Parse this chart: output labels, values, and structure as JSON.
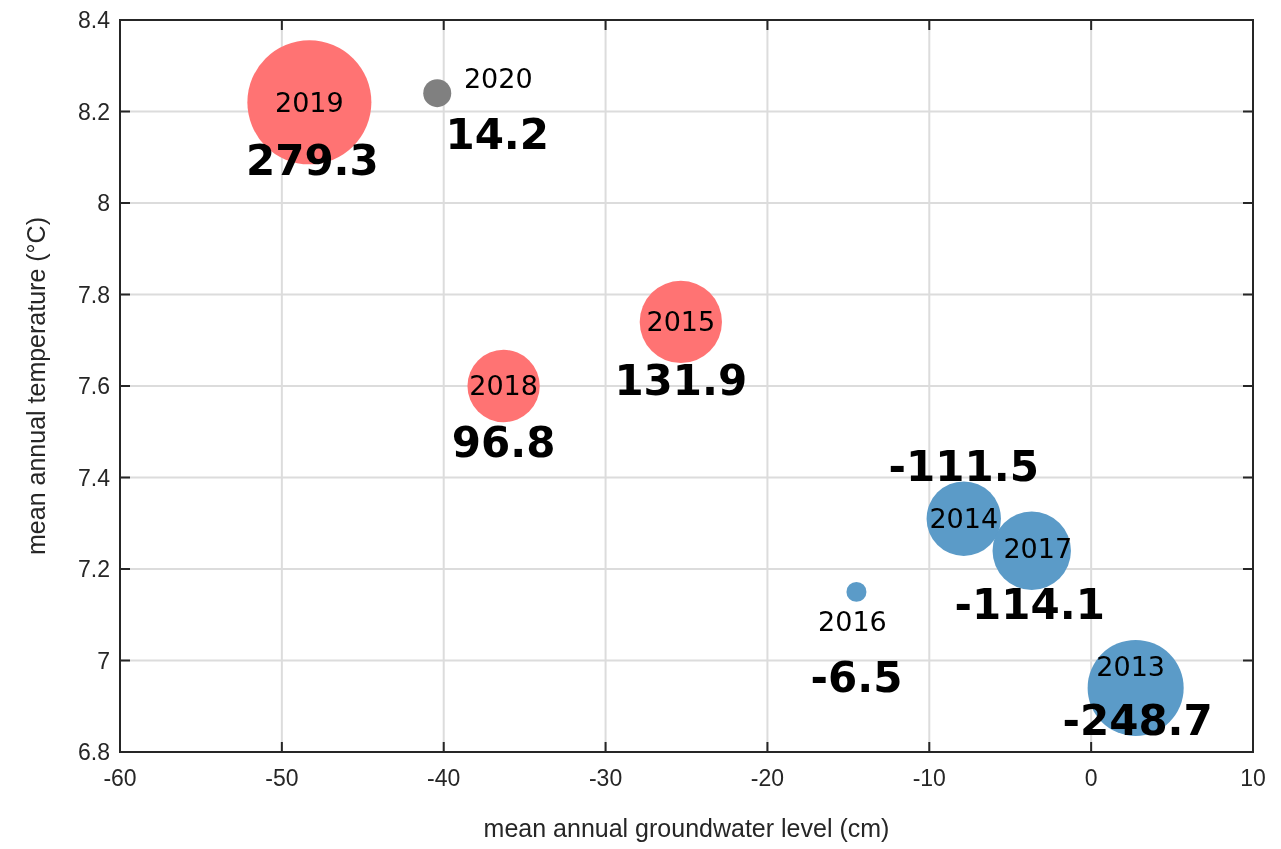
{
  "chart_data": {
    "type": "bubble",
    "xlabel": "mean annual groundwater level (cm)",
    "ylabel": "mean annual temperature (°C)",
    "x": [
      2.75,
      -7.87,
      -25.35,
      -14.5,
      -3.67,
      -36.3,
      -48.3,
      -40.4
    ],
    "values": [
      6.94,
      7.31,
      7.74,
      7.15,
      7.24,
      7.6,
      8.22,
      8.24
    ],
    "sizes": [
      0.6,
      0.36,
      0.44,
      0.026,
      0.4,
      0.34,
      1,
      0.051
    ],
    "colors": [
      "#5b9bc8",
      "#5b9bc8",
      "#ff7373",
      "#5b9bc8",
      "#5b9bc8",
      "#ff7373",
      "#ff7373",
      "#808080"
    ],
    "xlim": [
      -60,
      10
    ],
    "xticks": [
      -60,
      -50,
      -40,
      -30,
      -20,
      -10,
      0,
      10
    ],
    "ylim": [
      6.8,
      8.4
    ],
    "yticks": [
      6.8,
      7,
      7.2,
      7.4,
      7.6,
      7.8,
      8,
      8.2,
      8.4
    ],
    "grid": true,
    "annotations": [
      {
        "text": "2013",
        "x": 2.75,
        "y": 6.94
      },
      {
        "text": "-248.7",
        "x": 2.75,
        "y": 6.94
      },
      {
        "text": "2014",
        "x": -7.87,
        "y": 7.31
      },
      {
        "text": "-111.5",
        "x": -7.87,
        "y": 7.31
      },
      {
        "text": "2015",
        "x": -25.35,
        "y": 7.74
      },
      {
        "text": "131.9",
        "x": -25.35,
        "y": 7.74
      },
      {
        "text": "2016",
        "x": -14.5,
        "y": 7.15
      },
      {
        "text": "-6.5",
        "x": -14.5,
        "y": 7.15
      },
      {
        "text": "2017",
        "x": -3.67,
        "y": 7.24
      },
      {
        "text": "-114.1",
        "x": -3.67,
        "y": 7.24
      },
      {
        "text": "2018",
        "x": -36.3,
        "y": 7.6
      },
      {
        "text": "96.8",
        "x": -36.3,
        "y": 7.6
      },
      {
        "text": "2019",
        "x": -48.3,
        "y": 8.22
      },
      {
        "text": "279.3",
        "x": -48.3,
        "y": 8.22
      },
      {
        "text": "2020",
        "x": -40.4,
        "y": 8.24
      },
      {
        "text": "14.2",
        "x": -40.4,
        "y": 8.24
      }
    ]
  }
}
